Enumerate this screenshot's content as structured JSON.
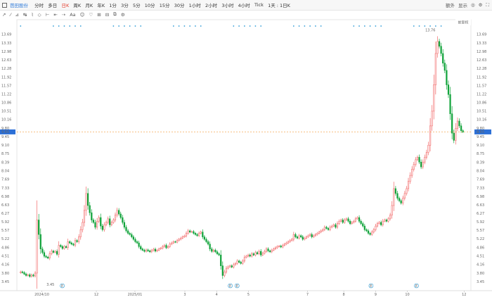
{
  "toolbar": {
    "stock_name": "芭田股份",
    "timeframes": [
      "分时",
      "多日",
      "日K",
      "周K",
      "月K",
      "年K",
      "1分",
      "3分",
      "5分",
      "10分",
      "15分",
      "30分",
      "1小时",
      "2小时",
      "3小时",
      "4小时",
      "Tick",
      "1天 : 1日K"
    ],
    "active_timeframe": "日K",
    "right_items": [
      "额外",
      "显示"
    ]
  },
  "drawbar": {
    "tools": [
      "↗",
      "⁄",
      "⊿",
      "↹",
      "⌇",
      "◇",
      "⊢",
      "⇤",
      "⇢",
      "Aa",
      "☺",
      "♡",
      "⊞",
      "⊟",
      "⧉",
      "⚙"
    ]
  },
  "colors": {
    "up": "#f26a6a",
    "down": "#11a33b",
    "marker": "#2c9bd6",
    "current": "#f39a3a"
  },
  "chart_data": {
    "type": "candlestick",
    "x_tick_labels": [
      "2024/10",
      "12",
      "2025/01",
      "3",
      "4",
      "5",
      "7",
      "8",
      "9",
      "10",
      "12"
    ],
    "y_ticks": [
      3.45,
      3.8,
      4.16,
      4.51,
      4.86,
      5.22,
      5.57,
      5.92,
      6.27,
      6.63,
      6.98,
      7.33,
      7.69,
      8.04,
      8.39,
      8.75,
      9.1,
      9.45,
      9.8,
      10.16,
      10.51,
      10.86,
      11.22,
      11.57,
      11.92,
      12.28,
      12.63,
      12.98,
      13.33,
      13.69
    ],
    "y_range": [
      3.1,
      13.95
    ],
    "current_price": "9.65",
    "high_label": "13.76",
    "low_label": "3.45",
    "top_right_button": "前复权",
    "event_marker_label": "E",
    "closes": [
      3.85,
      3.82,
      3.76,
      3.7,
      3.73,
      3.66,
      3.72,
      3.68,
      3.8,
      6.0,
      5.4,
      4.8,
      4.65,
      4.5,
      4.46,
      4.42,
      4.6,
      4.71,
      4.66,
      4.7,
      4.58,
      4.95,
      4.9,
      4.82,
      4.9,
      4.86,
      5.1,
      5.05,
      5.0,
      4.96,
      5.15,
      5.1,
      5.3,
      5.6,
      5.9,
      6.4,
      7.1,
      6.6,
      6.3,
      6.0,
      5.9,
      5.7,
      5.95,
      6.1,
      5.75,
      5.6,
      5.8,
      5.9,
      6.05,
      5.8,
      5.9,
      6.0,
      6.2,
      6.4,
      6.25,
      6.1,
      5.9,
      5.7,
      5.55,
      5.45,
      5.4,
      5.3,
      5.2,
      5.1,
      5.05,
      4.9,
      4.8,
      4.75,
      4.7,
      4.76,
      4.72,
      4.68,
      4.74,
      4.79,
      4.71,
      4.75,
      4.8,
      4.83,
      4.9,
      4.95,
      4.85,
      4.9,
      5.0,
      5.05,
      5.1,
      5.08,
      5.15,
      5.2,
      5.25,
      5.3,
      5.34,
      5.45,
      5.55,
      5.5,
      5.52,
      5.45,
      5.4,
      5.35,
      5.45,
      5.5,
      5.3,
      5.2,
      5.1,
      5.0,
      4.8,
      4.7,
      4.75,
      4.68,
      4.6,
      4.55,
      4.1,
      3.7,
      3.85,
      4.0,
      4.06,
      4.1,
      4.05,
      4.15,
      4.2,
      4.3,
      4.25,
      4.2,
      4.3,
      4.45,
      4.5,
      4.55,
      4.5,
      4.6,
      4.55,
      4.65,
      4.6,
      4.7,
      4.55,
      4.62,
      4.7,
      4.8,
      4.72,
      4.68,
      4.75,
      4.8,
      4.85,
      4.9,
      4.92,
      4.88,
      4.95,
      5.0,
      5.05,
      5.1,
      5.15,
      5.2,
      5.4,
      5.3,
      5.25,
      5.35,
      5.3,
      5.2,
      5.25,
      5.3,
      5.35,
      5.4,
      5.3,
      5.35,
      5.4,
      5.45,
      5.5,
      5.55,
      5.6,
      5.7,
      5.65,
      5.6,
      5.7,
      5.75,
      5.8,
      5.7,
      5.85,
      5.95,
      6.0,
      5.9,
      6.0,
      6.05,
      5.95,
      5.85,
      5.9,
      5.95,
      6.05,
      6.1,
      5.95,
      5.85,
      5.75,
      5.6,
      5.55,
      5.45,
      5.4,
      5.5,
      5.6,
      5.75,
      5.85,
      5.9,
      5.8,
      5.95,
      6.0,
      5.95,
      6.05,
      6.2,
      6.6,
      7.3,
      7.1,
      6.9,
      6.8,
      6.7,
      6.9,
      7.1,
      7.3,
      7.6,
      7.85,
      8.1,
      8.3,
      8.5,
      8.6,
      8.4,
      8.2,
      8.4,
      8.6,
      8.8,
      9.1,
      9.9,
      10.51,
      11.6,
      12.9,
      13.4,
      13.2,
      12.9,
      12.5,
      12.2,
      11.6,
      11.2,
      10.4,
      9.6,
      9.3,
      9.8,
      10.1,
      9.9,
      9.7,
      9.65
    ]
  }
}
